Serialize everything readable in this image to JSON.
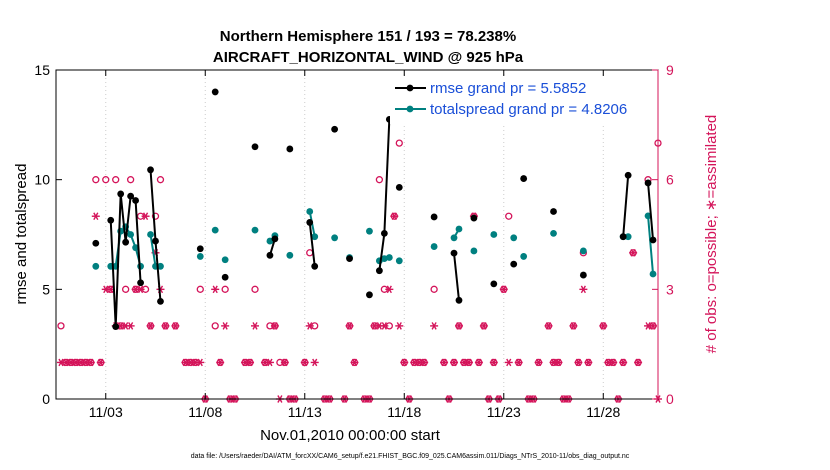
{
  "chart_data": {
    "type": "line",
    "title": "Northern Hemisphere 151 / 193 = 78.238%",
    "subtitle": "AIRCRAFT_HORIZONTAL_WIND @ 925 hPa",
    "xlabel": "Nov.01,2010 00:00:00 start",
    "ylabel": "rmse and totalspread",
    "ylabel_right": "# of obs: o=possible; ∗=assimilated",
    "footer": "data file: /Users/raeder/DAI/ATM_forcXX/CAM6_setup/f.e21.FHIST_BGC.f09_025.CAM6assim.011/Diags_NTrS_2010-11/obs_diag_output.nc",
    "xlim": [
      0.5,
      30.75
    ],
    "ylim": [
      0,
      15
    ],
    "ylim_right": [
      0,
      9
    ],
    "xticks": [
      3,
      8,
      13,
      18,
      23,
      28
    ],
    "xtick_labels": [
      "11/03",
      "11/08",
      "11/13",
      "11/18",
      "11/23",
      "11/28"
    ],
    "yticks": [
      0,
      5,
      10,
      15
    ],
    "yticks_right": [
      0,
      3,
      6,
      9
    ],
    "legend": [
      {
        "name": "rmse grand pr = 5.5852",
        "color": "#000000"
      },
      {
        "name": "totalspread grand pr = 4.8206",
        "color": "#008080"
      }
    ],
    "rmse": [
      [
        [
          2.5,
          7.1
        ]
      ],
      [
        [
          3.25,
          8.15
        ],
        [
          3.5,
          3.3
        ],
        [
          3.75,
          9.35
        ],
        [
          4.0,
          7.15
        ],
        [
          4.25,
          9.25
        ],
        [
          4.5,
          9.05
        ],
        [
          4.75,
          5.3
        ]
      ],
      [
        [
          5.25,
          10.45
        ],
        [
          5.5,
          7.2
        ],
        [
          5.75,
          4.45
        ]
      ],
      [
        [
          7.75,
          6.85
        ]
      ],
      [
        [
          8.5,
          14.0
        ]
      ],
      [
        [
          9.0,
          5.55
        ]
      ],
      [
        [
          10.5,
          11.5
        ]
      ],
      [
        [
          11.25,
          6.55
        ],
        [
          11.5,
          7.3
        ]
      ],
      [
        [
          12.25,
          11.4
        ]
      ],
      [
        [
          13.25,
          8.05
        ],
        [
          13.5,
          6.05
        ]
      ],
      [
        [
          14.5,
          12.3
        ]
      ],
      [
        [
          15.25,
          6.4
        ]
      ],
      [
        [
          16.25,
          4.75
        ]
      ],
      [
        [
          16.75,
          5.85
        ],
        [
          17.0,
          7.55
        ],
        [
          17.25,
          12.75
        ]
      ],
      [
        [
          17.75,
          9.65
        ]
      ],
      [
        [
          19.5,
          8.3
        ]
      ],
      [
        [
          20.5,
          6.65
        ],
        [
          20.75,
          4.5
        ]
      ],
      [
        [
          21.5,
          8.25
        ]
      ],
      [
        [
          22.5,
          5.25
        ]
      ],
      [
        [
          23.5,
          6.15
        ]
      ],
      [
        [
          24.0,
          10.05
        ]
      ],
      [
        [
          25.5,
          8.55
        ]
      ],
      [
        [
          27.0,
          5.65
        ]
      ],
      [
        [
          29.0,
          7.4
        ],
        [
          29.25,
          10.2
        ]
      ],
      [
        [
          30.25,
          9.85
        ],
        [
          30.5,
          7.25
        ]
      ]
    ],
    "totalspread": [
      [
        [
          2.5,
          6.05
        ]
      ],
      [
        [
          3.25,
          6.05
        ],
        [
          3.5,
          6.05
        ],
        [
          3.75,
          7.65
        ],
        [
          4.0,
          7.85
        ],
        [
          4.25,
          7.5
        ],
        [
          4.5,
          6.9
        ],
        [
          4.75,
          6.05
        ]
      ],
      [
        [
          5.25,
          7.5
        ],
        [
          5.5,
          6.05
        ],
        [
          5.75,
          6.05
        ]
      ],
      [
        [
          7.75,
          6.5
        ]
      ],
      [
        [
          8.5,
          7.7
        ]
      ],
      [
        [
          9.0,
          6.35
        ]
      ],
      [
        [
          10.5,
          7.7
        ]
      ],
      [
        [
          11.25,
          7.2
        ],
        [
          11.5,
          7.45
        ]
      ],
      [
        [
          12.25,
          6.55
        ]
      ],
      [
        [
          13.25,
          8.55
        ],
        [
          13.5,
          7.4
        ]
      ],
      [
        [
          14.5,
          7.35
        ]
      ],
      [
        [
          15.25,
          6.45
        ]
      ],
      [
        [
          16.25,
          7.65
        ]
      ],
      [
        [
          16.75,
          6.3
        ],
        [
          17.0,
          6.4
        ],
        [
          17.25,
          6.45
        ]
      ],
      [
        [
          17.75,
          6.3
        ]
      ],
      [
        [
          19.5,
          6.95
        ]
      ],
      [
        [
          20.5,
          7.35
        ],
        [
          20.75,
          7.75
        ]
      ],
      [
        [
          21.5,
          6.75
        ]
      ],
      [
        [
          22.5,
          7.5
        ]
      ],
      [
        [
          23.5,
          7.35
        ]
      ],
      [
        [
          24.0,
          6.5
        ]
      ],
      [
        [
          25.5,
          7.55
        ]
      ],
      [
        [
          27.0,
          6.75
        ]
      ],
      [
        [
          29.0,
          7.4
        ],
        [
          29.25,
          7.4
        ]
      ],
      [
        [
          30.25,
          8.35
        ],
        [
          30.5,
          5.7
        ]
      ]
    ],
    "obs_possible": [
      [
        0.75,
        2
      ],
      [
        1.0,
        1
      ],
      [
        1.25,
        1
      ],
      [
        1.5,
        1
      ],
      [
        1.75,
        1
      ],
      [
        2.0,
        1
      ],
      [
        2.25,
        1
      ],
      [
        2.5,
        6
      ],
      [
        2.75,
        1
      ],
      [
        3.0,
        6
      ],
      [
        3.25,
        3
      ],
      [
        3.5,
        6
      ],
      [
        3.75,
        2
      ],
      [
        4.0,
        3
      ],
      [
        4.25,
        6
      ],
      [
        4.5,
        3
      ],
      [
        4.75,
        5
      ],
      [
        5.0,
        3
      ],
      [
        5.25,
        2
      ],
      [
        5.5,
        5
      ],
      [
        5.75,
        6
      ],
      [
        6.0,
        2
      ],
      [
        6.5,
        2
      ],
      [
        7.0,
        1
      ],
      [
        7.25,
        1
      ],
      [
        7.5,
        1
      ],
      [
        7.75,
        3
      ],
      [
        8.0,
        0
      ],
      [
        8.5,
        2
      ],
      [
        8.75,
        1
      ],
      [
        9.0,
        3
      ],
      [
        9.25,
        0
      ],
      [
        9.5,
        0
      ],
      [
        10.0,
        1
      ],
      [
        10.25,
        1
      ],
      [
        10.5,
        3
      ],
      [
        11.0,
        1
      ],
      [
        11.25,
        2
      ],
      [
        11.5,
        2
      ],
      [
        11.75,
        1
      ],
      [
        12.0,
        1
      ],
      [
        12.25,
        0
      ],
      [
        12.5,
        0
      ],
      [
        13.0,
        1
      ],
      [
        13.25,
        4
      ],
      [
        13.5,
        2
      ],
      [
        14.0,
        0
      ],
      [
        14.25,
        0
      ],
      [
        15.0,
        0
      ],
      [
        15.25,
        2
      ],
      [
        15.5,
        1
      ],
      [
        16.0,
        0
      ],
      [
        16.25,
        0
      ],
      [
        16.5,
        2
      ],
      [
        16.75,
        6
      ],
      [
        17.0,
        3
      ],
      [
        17.25,
        2
      ],
      [
        17.5,
        5
      ],
      [
        17.75,
        7
      ],
      [
        18.0,
        1
      ],
      [
        18.25,
        0
      ],
      [
        18.5,
        1
      ],
      [
        18.75,
        1
      ],
      [
        19.0,
        1
      ],
      [
        19.5,
        3
      ],
      [
        20.0,
        1
      ],
      [
        20.25,
        0
      ],
      [
        20.5,
        1
      ],
      [
        20.75,
        2
      ],
      [
        21.0,
        1
      ],
      [
        21.25,
        1
      ],
      [
        21.5,
        5
      ],
      [
        21.75,
        1
      ],
      [
        22.0,
        2
      ],
      [
        22.25,
        0
      ],
      [
        22.5,
        1
      ],
      [
        22.75,
        0
      ],
      [
        23.0,
        3
      ],
      [
        23.25,
        5
      ],
      [
        23.75,
        1
      ],
      [
        24.25,
        0
      ],
      [
        24.5,
        0
      ],
      [
        24.75,
        1
      ],
      [
        25.25,
        2
      ],
      [
        25.5,
        1
      ],
      [
        25.75,
        1
      ],
      [
        26.0,
        0
      ],
      [
        26.25,
        0
      ],
      [
        26.5,
        2
      ],
      [
        26.75,
        1
      ],
      [
        27.0,
        4
      ],
      [
        27.25,
        1
      ],
      [
        28.0,
        2
      ],
      [
        28.25,
        1
      ],
      [
        28.5,
        1
      ],
      [
        28.75,
        0
      ],
      [
        29.0,
        1
      ],
      [
        29.5,
        4
      ],
      [
        29.75,
        1
      ],
      [
        30.25,
        6
      ],
      [
        30.5,
        2
      ],
      [
        30.75,
        7
      ]
    ],
    "obs_assimilated": [
      [
        0.75,
        1
      ],
      [
        1.0,
        1
      ],
      [
        1.25,
        1
      ],
      [
        1.5,
        1
      ],
      [
        1.75,
        1
      ],
      [
        2.0,
        1
      ],
      [
        2.25,
        1
      ],
      [
        2.5,
        5
      ],
      [
        2.75,
        1
      ],
      [
        3.0,
        3
      ],
      [
        3.25,
        3
      ],
      [
        3.5,
        2
      ],
      [
        3.75,
        2
      ],
      [
        4.0,
        2
      ],
      [
        4.25,
        2
      ],
      [
        4.5,
        3
      ],
      [
        4.75,
        3
      ],
      [
        5.0,
        5
      ],
      [
        5.25,
        2
      ],
      [
        5.5,
        4
      ],
      [
        5.75,
        3
      ],
      [
        6.0,
        2
      ],
      [
        6.5,
        2
      ],
      [
        7.0,
        1
      ],
      [
        7.25,
        1
      ],
      [
        7.5,
        1
      ],
      [
        7.75,
        1
      ],
      [
        8.0,
        0
      ],
      [
        8.5,
        3
      ],
      [
        8.75,
        1
      ],
      [
        9.0,
        2
      ],
      [
        9.25,
        0
      ],
      [
        9.5,
        0
      ],
      [
        10.0,
        1
      ],
      [
        10.25,
        1
      ],
      [
        10.5,
        2
      ],
      [
        11.0,
        1
      ],
      [
        11.25,
        1
      ],
      [
        11.5,
        2
      ],
      [
        11.75,
        0
      ],
      [
        12.0,
        1
      ],
      [
        12.25,
        0
      ],
      [
        12.5,
        0
      ],
      [
        13.0,
        1
      ],
      [
        13.25,
        2
      ],
      [
        13.5,
        1
      ],
      [
        14.0,
        0
      ],
      [
        14.25,
        0
      ],
      [
        15.0,
        0
      ],
      [
        15.25,
        2
      ],
      [
        15.5,
        1
      ],
      [
        16.0,
        0
      ],
      [
        16.25,
        0
      ],
      [
        16.5,
        2
      ],
      [
        16.75,
        2
      ],
      [
        17.0,
        2
      ],
      [
        17.25,
        3
      ],
      [
        17.5,
        5
      ],
      [
        17.75,
        2
      ],
      [
        18.0,
        1
      ],
      [
        18.25,
        0
      ],
      [
        18.5,
        1
      ],
      [
        18.75,
        1
      ],
      [
        19.0,
        1
      ],
      [
        19.5,
        2
      ],
      [
        20.0,
        1
      ],
      [
        20.25,
        0
      ],
      [
        20.5,
        1
      ],
      [
        20.75,
        2
      ],
      [
        21.0,
        1
      ],
      [
        21.25,
        1
      ],
      [
        21.5,
        5
      ],
      [
        21.75,
        1
      ],
      [
        22.0,
        2
      ],
      [
        22.25,
        0
      ],
      [
        22.5,
        1
      ],
      [
        22.75,
        0
      ],
      [
        23.0,
        3
      ],
      [
        23.25,
        1
      ],
      [
        23.75,
        1
      ],
      [
        24.25,
        0
      ],
      [
        24.5,
        0
      ],
      [
        24.75,
        1
      ],
      [
        25.25,
        2
      ],
      [
        25.5,
        1
      ],
      [
        25.75,
        1
      ],
      [
        26.0,
        0
      ],
      [
        26.25,
        0
      ],
      [
        26.5,
        2
      ],
      [
        26.75,
        1
      ],
      [
        27.0,
        3
      ],
      [
        27.25,
        1
      ],
      [
        28.0,
        2
      ],
      [
        28.25,
        1
      ],
      [
        28.5,
        1
      ],
      [
        28.75,
        0
      ],
      [
        29.0,
        1
      ],
      [
        29.5,
        4
      ],
      [
        29.75,
        1
      ],
      [
        30.25,
        2
      ],
      [
        30.5,
        2
      ],
      [
        30.75,
        0
      ]
    ],
    "colors": {
      "rmse": "#000000",
      "totalspread": "#008080",
      "obs": "#d4145a",
      "legend_text": "#1a4fd8",
      "axis": "#000000",
      "grid": "#cccccc"
    }
  }
}
